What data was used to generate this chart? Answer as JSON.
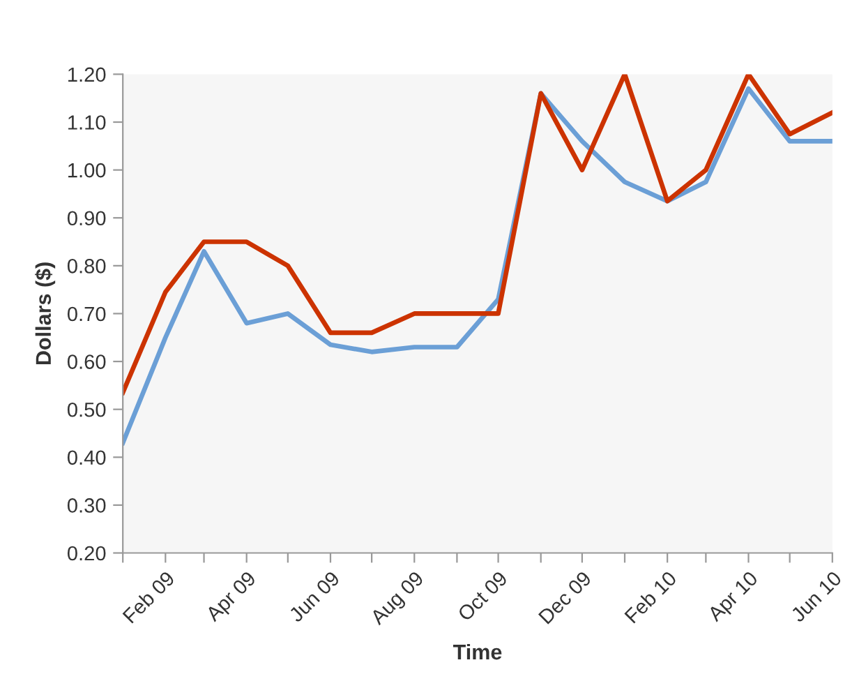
{
  "chart_data": {
    "type": "line",
    "xlabel": "Time",
    "ylabel": "Dollars ($)",
    "x": [
      "2009-01",
      "2009-02",
      "2009-03",
      "2009-04",
      "2009-05",
      "2009-06",
      "2009-07",
      "2009-08",
      "2009-09",
      "2009-10",
      "2009-11",
      "2009-12",
      "2010-01",
      "2010-02",
      "2010-03",
      "2010-04",
      "2010-05",
      "2010-06"
    ],
    "series": [
      {
        "color": "#6b9fd6",
        "values": [
          0.43,
          0.65,
          0.83,
          0.68,
          0.7,
          0.635,
          0.62,
          0.63,
          0.63,
          0.73,
          1.16,
          1.06,
          0.975,
          0.935,
          0.975,
          1.17,
          1.06,
          1.06
        ]
      },
      {
        "color": "#cc3300",
        "values": [
          0.535,
          0.745,
          0.85,
          0.85,
          0.8,
          0.66,
          0.66,
          0.7,
          0.7,
          0.7,
          1.16,
          1.0,
          1.2,
          0.935,
          1.0,
          1.2,
          1.075,
          1.12
        ]
      }
    ],
    "xlim": [
      "2009-01",
      "2010-06"
    ],
    "xticks": [
      {
        "value": "2009-01",
        "label": null
      },
      {
        "value": "2009-02",
        "label": "Feb 09"
      },
      {
        "value": "2009-03",
        "label": null
      },
      {
        "value": "2009-04",
        "label": "Apr 09"
      },
      {
        "value": "2009-05",
        "label": null
      },
      {
        "value": "2009-06",
        "label": "Jun 09"
      },
      {
        "value": "2009-07",
        "label": null
      },
      {
        "value": "2009-08",
        "label": "Aug 09"
      },
      {
        "value": "2009-09",
        "label": null
      },
      {
        "value": "2009-10",
        "label": "Oct 09"
      },
      {
        "value": "2009-11",
        "label": null
      },
      {
        "value": "2009-12",
        "label": "Dec 09"
      },
      {
        "value": "2010-01",
        "label": null
      },
      {
        "value": "2010-02",
        "label": "Feb 10"
      },
      {
        "value": "2010-03",
        "label": null
      },
      {
        "value": "2010-04",
        "label": "Apr 10"
      },
      {
        "value": "2010-05",
        "label": null
      },
      {
        "value": "2010-06",
        "label": "Jun 10"
      }
    ],
    "ylim": [
      0.2,
      1.2
    ],
    "yticks": [
      {
        "value": 0.2,
        "label": "0.20"
      },
      {
        "value": 0.3,
        "label": "0.30"
      },
      {
        "value": 0.4,
        "label": "0.40"
      },
      {
        "value": 0.5,
        "label": "0.50"
      },
      {
        "value": 0.6,
        "label": "0.60"
      },
      {
        "value": 0.7,
        "label": "0.70"
      },
      {
        "value": 0.8,
        "label": "0.80"
      },
      {
        "value": 0.9,
        "label": "0.90"
      },
      {
        "value": 1.0,
        "label": "1.00"
      },
      {
        "value": 1.1,
        "label": "1.10"
      },
      {
        "value": 1.2,
        "label": "1.20"
      }
    ],
    "grid": false,
    "marker": "none",
    "line_style": "solid"
  }
}
